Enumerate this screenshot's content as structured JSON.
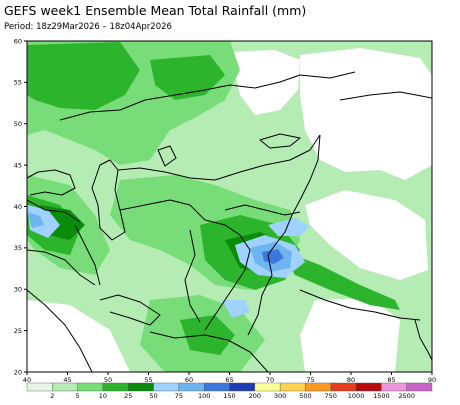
{
  "title": "GEFS week1 Ensemble Mean Total Rainfall (mm)",
  "period": "Period: 18z29Mar2026 – 18z04Apr2026",
  "map": {
    "lon_range": [
      40,
      90
    ],
    "lat_range": [
      20,
      60
    ],
    "lon_ticks": [
      40,
      45,
      50,
      55,
      60,
      65,
      70,
      75,
      80,
      85,
      90
    ],
    "lat_ticks": [
      20,
      25,
      30,
      35,
      40,
      45,
      50,
      55,
      60
    ]
  },
  "legend": {
    "levels": [
      "2",
      "5",
      "10",
      "25",
      "50",
      "75",
      "100",
      "150",
      "200",
      "300",
      "500",
      "750",
      "1000",
      "1500",
      "2500"
    ],
    "colors": [
      "#e6f5e6",
      "#b4ecb4",
      "#78dc78",
      "#2db42d",
      "#0a8c0a",
      "#a0d2ff",
      "#6eb4f0",
      "#3c78dc",
      "#1e3cb4",
      "#ffff96",
      "#ffd250",
      "#ff9a1e",
      "#e63c1e",
      "#b40a0a",
      "#f096dc",
      "#c864c8"
    ]
  }
}
